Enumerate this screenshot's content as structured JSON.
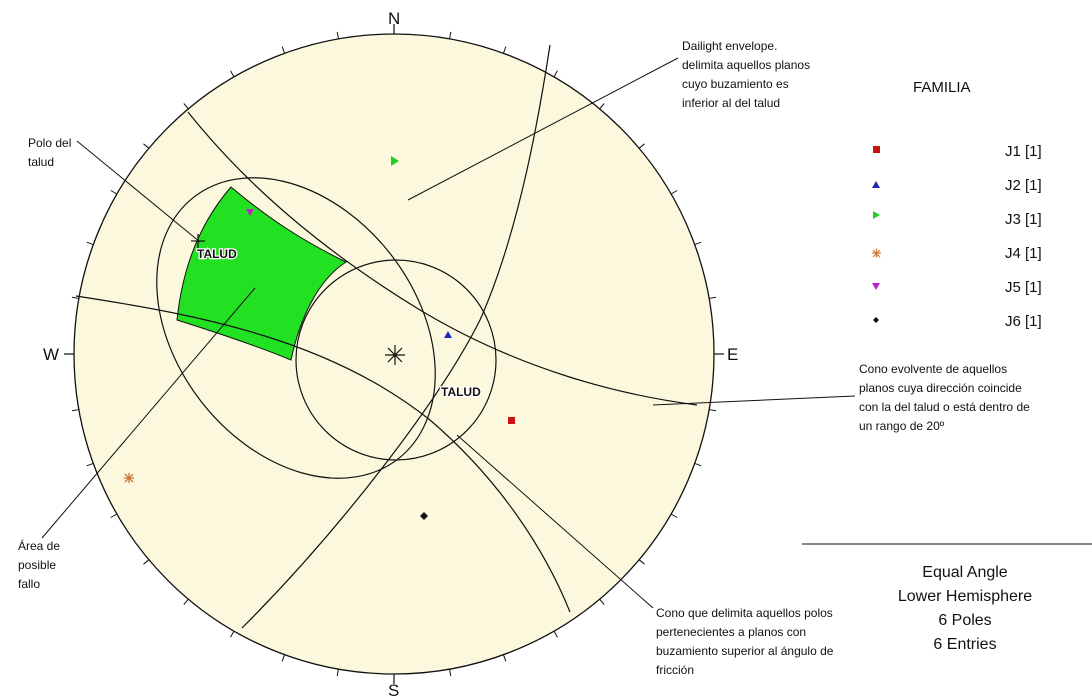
{
  "compass": {
    "north": "N",
    "south": "S",
    "east": "E",
    "west": "W"
  },
  "slope_labels": {
    "pole": "TALUD",
    "plane": "TALUD"
  },
  "annotations": {
    "pole_label": [
      "Polo del",
      "talud"
    ],
    "daylight_envelope": [
      "Dailight envelope.",
      "delimita aquellos planos",
      "cuyo buzamiento es",
      "inferior al del talud"
    ],
    "failure_area": [
      "Área de",
      "posible",
      "fallo"
    ],
    "lateral_limits": [
      "Cono evolvente de aquellos",
      "planos cuya dirección coincide",
      "con la del talud o está dentro de",
      "un rango de 20º"
    ],
    "friction_cone": [
      "Cono que delimita aquellos polos",
      "pertenecientes a planos con",
      "buzamiento superior al ángulo de",
      "fricción"
    ]
  },
  "legend": {
    "title": "FAMILIA",
    "items": [
      {
        "label": "J1 [1]",
        "symbol": "square",
        "color": "#cc1111"
      },
      {
        "label": "J2 [1]",
        "symbol": "triangle-up",
        "color": "#1a2bbb"
      },
      {
        "label": "J3 [1]",
        "symbol": "triangle-right",
        "color": "#22cc22"
      },
      {
        "label": "J4 [1]",
        "symbol": "asterisk",
        "color": "#cc7733"
      },
      {
        "label": "J5 [1]",
        "symbol": "triangle-down",
        "color": "#bb22cc"
      },
      {
        "label": "J6 [1]",
        "symbol": "diamond",
        "color": "#111111"
      }
    ]
  },
  "projection_info": [
    "Equal Angle",
    "Lower Hemisphere",
    "6 Poles",
    "6 Entries"
  ],
  "colors": {
    "net_fill": "#fbf8dd",
    "failure_zone": "#22e022",
    "line": "#111111"
  }
}
